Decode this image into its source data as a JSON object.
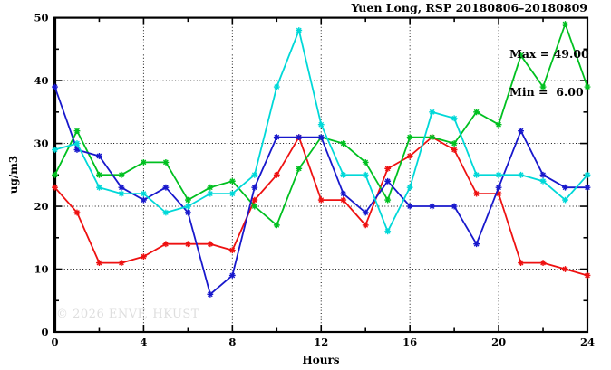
{
  "title": "Yuen Long, RSP 20180806–20180809",
  "legend": {
    "max_label": "Max = 49.00",
    "min_label": "Min =  6.00"
  },
  "watermark": "© 2026 ENVF, HKUST",
  "chart_data": {
    "type": "line",
    "title": "Yuen Long, RSP 20180806–20180809",
    "xlabel": "Hours",
    "ylabel": "ug/m3",
    "xlim": [
      0,
      24
    ],
    "ylim": [
      0,
      50
    ],
    "x_major_ticks": [
      0,
      4,
      8,
      12,
      16,
      20,
      24
    ],
    "x_minor_ticks": [
      2,
      6,
      10,
      14,
      18,
      22
    ],
    "y_major_ticks": [
      0,
      10,
      20,
      30,
      40,
      50
    ],
    "y_minor_ticks": [
      5,
      15,
      25,
      35,
      45
    ],
    "x_gridlines": [
      4,
      8,
      12,
      16,
      20
    ],
    "y_gridlines": [
      10,
      20,
      30,
      40
    ],
    "grid": "dotted",
    "legend_position": "top-right-inside",
    "max": 49.0,
    "min": 6.0,
    "x": [
      0,
      1,
      2,
      3,
      4,
      5,
      6,
      7,
      8,
      9,
      10,
      11,
      12,
      13,
      14,
      15,
      16,
      17,
      18,
      19,
      20,
      21,
      22,
      23,
      24
    ],
    "series": [
      {
        "name": "red",
        "color": "#ee1111",
        "values": [
          23,
          19,
          11,
          11,
          12,
          14,
          14,
          14,
          13,
          21,
          25,
          31,
          21,
          21,
          17,
          26,
          28,
          31,
          29,
          22,
          22,
          11,
          11,
          10,
          9
        ]
      },
      {
        "name": "green",
        "color": "#00c020",
        "values": [
          25,
          32,
          25,
          25,
          27,
          27,
          21,
          23,
          24,
          20,
          17,
          26,
          31,
          30,
          27,
          21,
          31,
          31,
          30,
          35,
          33,
          44,
          39,
          49,
          39
        ]
      },
      {
        "name": "blue",
        "color": "#1818cc",
        "values": [
          39,
          29,
          28,
          23,
          21,
          23,
          19,
          6,
          9,
          23,
          31,
          31,
          31,
          22,
          19,
          24,
          20,
          20,
          20,
          14,
          23,
          32,
          25,
          23,
          23
        ]
      },
      {
        "name": "cyan",
        "color": "#00d8d8",
        "values": [
          29,
          30,
          23,
          22,
          22,
          19,
          20,
          22,
          22,
          25,
          39,
          48,
          33,
          25,
          25,
          16,
          23,
          35,
          34,
          25,
          25,
          25,
          24,
          21,
          25
        ]
      }
    ]
  }
}
